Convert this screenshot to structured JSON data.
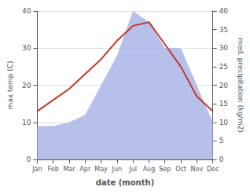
{
  "chart_data": {
    "type": "line",
    "xlabel": "date (month)",
    "ylabel": "max temp (C)",
    "y2label": "med. precipitation (kg/m2)",
    "categories": [
      "Jan",
      "Feb",
      "Mar",
      "Apr",
      "May",
      "Jun",
      "Jul",
      "Aug",
      "Sep",
      "Oct",
      "Nov",
      "Dec"
    ],
    "series": [
      {
        "type": "area",
        "color": "#aab4e8",
        "axis": "y2",
        "values": [
          9,
          9,
          10,
          12,
          20,
          28,
          40,
          37,
          30,
          30,
          20,
          10
        ]
      },
      {
        "type": "line",
        "color": "#c0392b",
        "values": [
          13,
          16,
          19,
          23,
          27,
          32,
          36,
          37,
          31,
          25,
          17,
          13
        ]
      }
    ],
    "ylim": [
      0,
      40
    ],
    "yticks": [
      0,
      10,
      20,
      30,
      40
    ],
    "y2lim": [
      0,
      40
    ],
    "y2ticks": [
      0,
      5,
      10,
      15,
      20,
      25,
      30,
      35,
      40
    ],
    "grid": true
  }
}
